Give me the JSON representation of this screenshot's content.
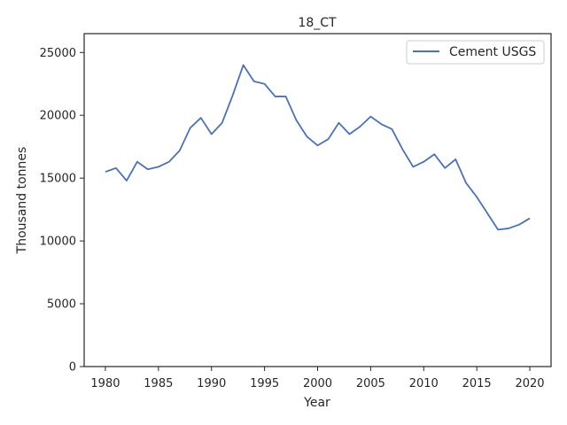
{
  "chart_data": {
    "type": "line",
    "title": "18_CT",
    "xlabel": "Year",
    "ylabel": "Thousand tonnes",
    "xlim": [
      1978,
      2022
    ],
    "ylim": [
      0,
      26500
    ],
    "x_ticks": [
      1980,
      1985,
      1990,
      1995,
      2000,
      2005,
      2010,
      2015,
      2020
    ],
    "y_ticks": [
      0,
      5000,
      10000,
      15000,
      20000,
      25000
    ],
    "grid": false,
    "legend_position": "top-right",
    "series": [
      {
        "name": "Cement USGS",
        "color": "#4c72b0",
        "x": [
          1980,
          1981,
          1982,
          1983,
          1984,
          1985,
          1986,
          1987,
          1988,
          1989,
          1990,
          1991,
          1992,
          1993,
          1994,
          1995,
          1996,
          1997,
          1998,
          1999,
          2000,
          2001,
          2002,
          2003,
          2004,
          2005,
          2006,
          2007,
          2008,
          2009,
          2010,
          2011,
          2012,
          2013,
          2014,
          2015,
          2016,
          2017,
          2018,
          2019,
          2020
        ],
        "y": [
          15500,
          15800,
          14800,
          16300,
          15700,
          15900,
          16300,
          17200,
          19000,
          19800,
          18500,
          19400,
          21600,
          24000,
          22700,
          22500,
          21500,
          21500,
          19600,
          18300,
          17600,
          18100,
          19400,
          18500,
          19100,
          19900,
          19300,
          18900,
          17300,
          15900,
          16300,
          16900,
          15800,
          16500,
          14600,
          13500,
          12200,
          10900,
          11000,
          11300,
          11800
        ]
      }
    ]
  }
}
